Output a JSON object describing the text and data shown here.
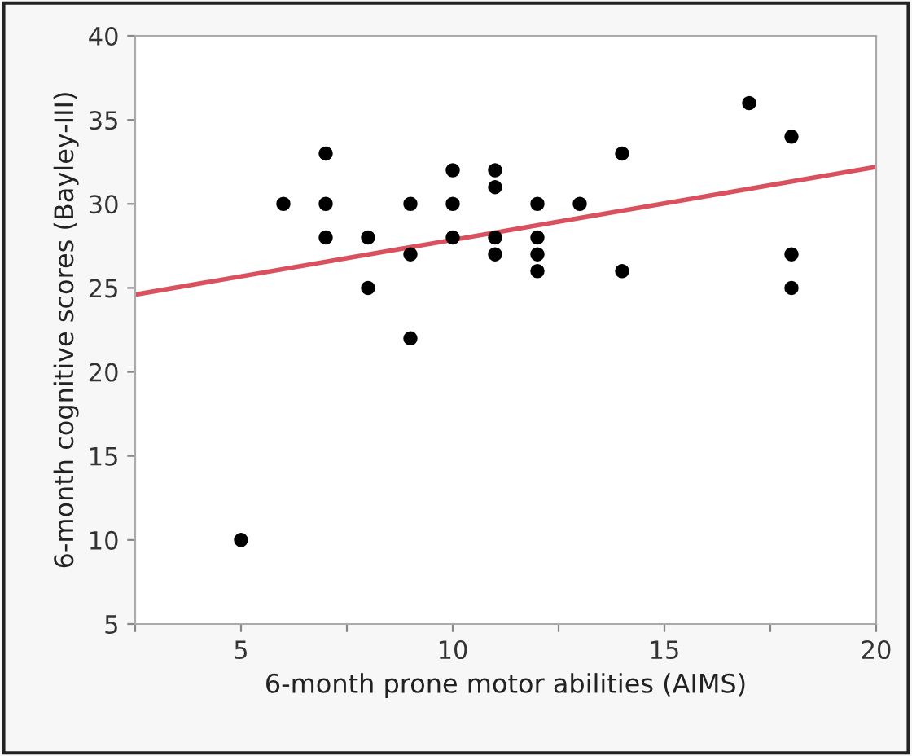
{
  "chart_data": {
    "type": "scatter",
    "xlabel": "6-month prone motor abilities (AIMS)",
    "ylabel": "6-month cognitive scores (Bayley-III)",
    "xlim": [
      2.5,
      20
    ],
    "ylim": [
      5,
      40
    ],
    "xticks": [
      {
        "value": 2.5,
        "label": null
      },
      5,
      {
        "value": 7.5,
        "label": null
      },
      10,
      {
        "value": 12.5,
        "label": null
      },
      15,
      {
        "value": 17.5,
        "label": null
      },
      20
    ],
    "yticks": [
      5,
      10,
      15,
      20,
      25,
      30,
      35,
      40
    ],
    "grid": false,
    "series": [
      {
        "marker": "circle",
        "color": "#000000",
        "x": [
          5,
          6,
          7,
          7,
          7,
          8,
          8,
          9,
          9,
          9,
          10,
          10,
          10,
          11,
          11,
          11,
          11,
          12,
          12,
          12,
          12,
          13,
          14,
          14,
          17,
          18,
          18,
          18
        ],
        "values": [
          10,
          30,
          33,
          30,
          28,
          28,
          25,
          30,
          27,
          22,
          32,
          30,
          28,
          32,
          31,
          28,
          27,
          30,
          28,
          27,
          26,
          30,
          33,
          26,
          36,
          34,
          27,
          25
        ]
      },
      {
        "type": "line",
        "marker": "none",
        "color": "#d9505e",
        "x": [
          2.5,
          20
        ],
        "values": [
          24.6,
          32.2
        ]
      }
    ]
  }
}
